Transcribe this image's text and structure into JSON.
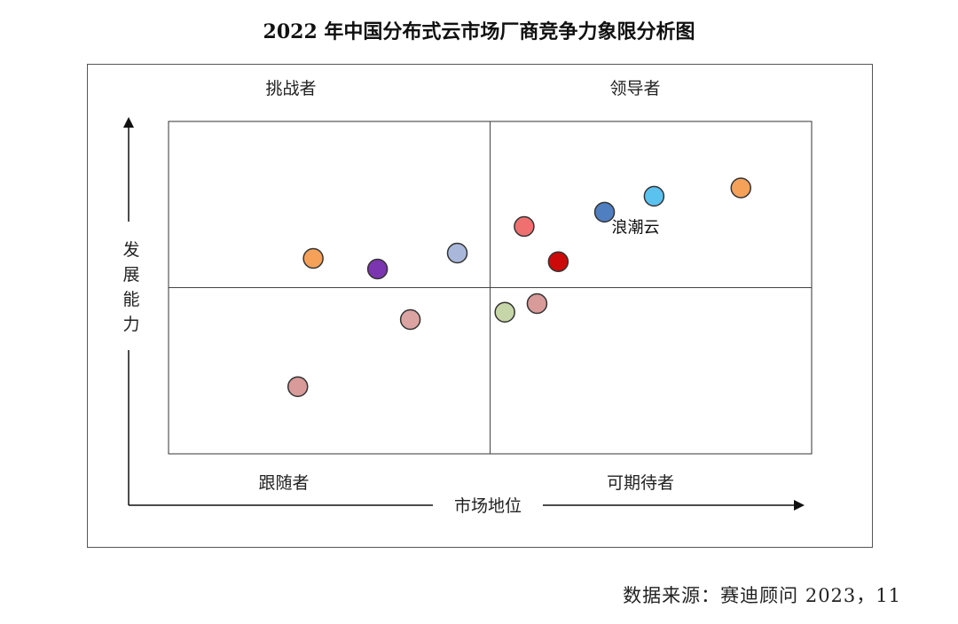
{
  "chart_data": {
    "type": "scatter",
    "title": "2022 年中国分布式云市场厂商竞争力象限分析图",
    "xlabel": "市场地位",
    "ylabel": "发展能力",
    "xlim": [
      0,
      100
    ],
    "ylim": [
      0,
      100
    ],
    "quadrants": {
      "top_left": "挑战者",
      "top_right": "领导者",
      "bottom_left": "跟随者",
      "bottom_right": "可期待者"
    },
    "points": [
      {
        "x": 89.0,
        "y": 80.0,
        "color": "#f5a15a",
        "label": ""
      },
      {
        "x": 75.5,
        "y": 77.5,
        "color": "#5bc2f0",
        "label": ""
      },
      {
        "x": 67.8,
        "y": 72.7,
        "color": "#4f7fc1",
        "label": "浪潮云"
      },
      {
        "x": 55.3,
        "y": 68.4,
        "color": "#f07070",
        "label": ""
      },
      {
        "x": 60.6,
        "y": 57.8,
        "color": "#cc0a0a",
        "label": ""
      },
      {
        "x": 44.9,
        "y": 60.4,
        "color": "#a9b8da",
        "label": ""
      },
      {
        "x": 22.5,
        "y": 58.8,
        "color": "#f5a15a",
        "label": ""
      },
      {
        "x": 32.5,
        "y": 55.6,
        "color": "#7b35b0",
        "label": ""
      },
      {
        "x": 57.3,
        "y": 45.2,
        "color": "#d99a9a",
        "label": ""
      },
      {
        "x": 52.3,
        "y": 42.6,
        "color": "#c7d6a8",
        "label": ""
      },
      {
        "x": 37.6,
        "y": 40.4,
        "color": "#dca3a3",
        "label": ""
      },
      {
        "x": 20.1,
        "y": 20.2,
        "color": "#d99a9a",
        "label": ""
      }
    ]
  },
  "source": "数据来源：赛迪顾问 2023，11"
}
